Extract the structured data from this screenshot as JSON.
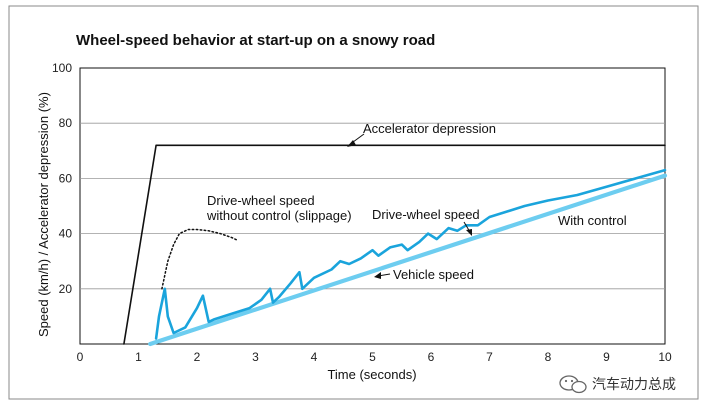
{
  "chart_data": {
    "type": "line",
    "title": "Wheel-speed behavior at start-up on a snowy road",
    "xlabel": "Time (seconds)",
    "ylabel": "Speed (km/h) / Accelerator depression (%)",
    "xlim": [
      0,
      10
    ],
    "ylim": [
      0,
      100
    ],
    "xticks": [
      "0",
      "1",
      "2",
      "3",
      "4",
      "5",
      "6",
      "7",
      "8",
      "9",
      "10"
    ],
    "yticks": [
      "20",
      "40",
      "60",
      "80",
      "100"
    ],
    "grid": "horizontal",
    "series": [
      {
        "name": "Accelerator depression",
        "color": "#111111",
        "style": "solid",
        "x": [
          0.75,
          1.3,
          10
        ],
        "y": [
          0,
          72,
          72
        ]
      },
      {
        "name": "Drive-wheel speed without control (slippage)",
        "color": "#111111",
        "style": "dotted",
        "x": [
          1.4,
          1.5,
          1.6,
          1.7,
          1.85,
          2.0,
          2.2,
          2.4,
          2.6,
          2.7
        ],
        "y": [
          20,
          30,
          36,
          40,
          41.5,
          41.5,
          41,
          40,
          38.5,
          37.5
        ]
      },
      {
        "name": "Drive-wheel speed",
        "color": "#1aa4dc",
        "style": "solid",
        "x": [
          1.3,
          1.35,
          1.45,
          1.5,
          1.6,
          1.8,
          2.0,
          2.1,
          2.2,
          2.3,
          2.6,
          2.9,
          3.1,
          3.25,
          3.3,
          3.4,
          3.6,
          3.75,
          3.8,
          4.0,
          4.3,
          4.45,
          4.6,
          4.8,
          5.0,
          5.1,
          5.3,
          5.5,
          5.6,
          5.8,
          5.95,
          6.1,
          6.3,
          6.45,
          6.6,
          6.8,
          7.0,
          7.3,
          7.6,
          8.0,
          8.5,
          9.0,
          9.5,
          10.0
        ],
        "y": [
          2,
          10,
          20,
          10,
          4,
          6,
          13,
          17.5,
          8,
          9,
          11,
          13,
          16,
          20,
          15,
          17,
          22,
          26,
          20,
          24,
          27,
          30,
          29,
          31,
          34,
          32,
          35,
          36,
          34,
          37,
          40,
          38,
          42,
          41,
          43,
          43,
          46,
          48,
          50,
          52,
          54,
          57,
          60,
          63
        ]
      },
      {
        "name": "Vehicle speed",
        "color": "#6dcdf0",
        "style": "solid",
        "x": [
          1.2,
          10
        ],
        "y": [
          0,
          61
        ]
      }
    ],
    "annotations": [
      {
        "text": "Accelerator depression",
        "x": 4.9,
        "y": 76,
        "ax": 4.7,
        "ay": 72
      },
      {
        "text": "Drive-wheel speed",
        "x": 5.1,
        "y": 45,
        "ax": 5.8,
        "ay": 39.5
      },
      {
        "text": "without control (slippage)",
        "x": 2.3,
        "y": 45
      },
      {
        "text": "Drive-wheel speed",
        "x": 2.3,
        "y": 50
      },
      {
        "text": "Drive-wheel speed",
        "x": 5.1,
        "y": 45
      },
      {
        "text": "With control",
        "x": 8.3,
        "y": 43
      },
      {
        "text": "Vehicle speed",
        "x": 5.4,
        "y": 24,
        "ax": 5.1,
        "ay": 23
      }
    ]
  },
  "labels": {
    "accelerator": "Accelerator depression",
    "no_control_line1": "Drive-wheel speed",
    "no_control_line2": "without control (slippage)",
    "drive_wheel": "Drive-wheel speed",
    "with_control": "With control",
    "vehicle": "Vehicle speed"
  },
  "watermark": {
    "text": "汽车动力总成",
    "icon": "wechat-icon"
  }
}
